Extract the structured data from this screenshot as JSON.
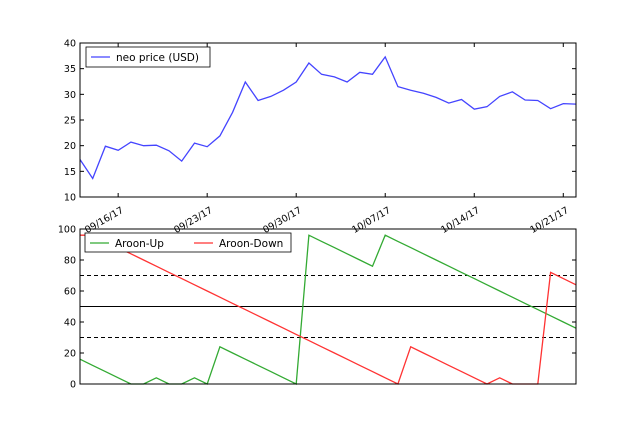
{
  "chart_data": [
    {
      "type": "line",
      "x_tick_labels": [
        "09/16/17",
        "09/23/17",
        "09/30/17",
        "10/07/17",
        "10/14/17",
        "10/21/17"
      ],
      "ylim": [
        10,
        40
      ],
      "y_ticks": [
        10,
        15,
        20,
        25,
        30,
        35,
        40
      ],
      "legend_position": "top-left",
      "series": [
        {
          "name": "neo price (USD)",
          "color": "#4444ff",
          "values": [
            17.3,
            13.6,
            19.9,
            19.1,
            20.7,
            20.0,
            20.1,
            19.0,
            17.0,
            20.5,
            19.8,
            21.9,
            26.5,
            32.4,
            28.8,
            29.6,
            30.8,
            32.4,
            36.1,
            33.9,
            33.4,
            32.4,
            34.3,
            33.9,
            37.3,
            31.5,
            30.8,
            30.2,
            29.4,
            28.3,
            29.0,
            27.1,
            27.6,
            29.6,
            30.5,
            28.9,
            28.8,
            27.2,
            28.2,
            28.1
          ]
        }
      ]
    },
    {
      "type": "line",
      "ylim": [
        0,
        100
      ],
      "y_ticks": [
        0,
        20,
        40,
        60,
        80,
        100
      ],
      "legend_position": "top-left",
      "reference_lines": [
        {
          "value": 70,
          "style": "dashed"
        },
        {
          "value": 50,
          "style": "solid"
        },
        {
          "value": 30,
          "style": "dashed"
        }
      ],
      "series": [
        {
          "name": "Aroon-Up",
          "color": "#33aa33",
          "values": [
            16,
            12,
            8,
            4,
            0,
            0,
            4,
            0,
            0,
            4,
            0,
            24,
            20,
            16,
            12,
            8,
            4,
            0,
            96,
            92,
            88,
            84,
            80,
            76,
            96,
            92,
            88,
            84,
            80,
            76,
            72,
            68,
            64,
            60,
            56,
            52,
            48,
            44,
            40,
            36
          ]
        },
        {
          "name": "Aroon-Down",
          "color": "#ff3333",
          "values": [
            96,
            96,
            92,
            88,
            84,
            80,
            76,
            72,
            68,
            64,
            60,
            56,
            52,
            48,
            44,
            40,
            36,
            32,
            28,
            24,
            20,
            16,
            12,
            8,
            4,
            0,
            24,
            20,
            16,
            12,
            8,
            4,
            0,
            4,
            0,
            0,
            0,
            72,
            68,
            64
          ]
        }
      ]
    }
  ]
}
